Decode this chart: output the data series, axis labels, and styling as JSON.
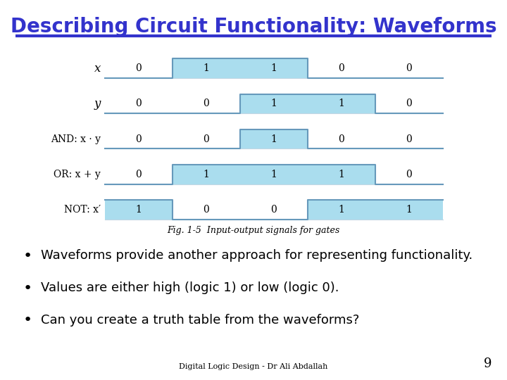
{
  "title": "Describing Circuit Functionality: Waveforms",
  "title_color": "#3333CC",
  "title_fontsize": 20,
  "background_color": "#FFFFFF",
  "header_line_color": "#3333CC",
  "bullet_points": [
    "Waveforms provide another approach for representing functionality.",
    "Values are either high (logic 1) or low (logic 0).",
    "Can you create a truth table from the waveforms?"
  ],
  "bullet_fontsize": 13,
  "bullet_color": "#000000",
  "footer_text": "Digital Logic Design - Dr Ali Abdallah",
  "footer_page": "9",
  "fig_caption": "Fig. 1-5  Input-output signals for gates",
  "waveform_fill_color": "#AADDEE",
  "waveform_line_color": "#6699BB",
  "signal_keys": [
    "x",
    "y",
    "and",
    "or",
    "not"
  ],
  "signal_labels": [
    "x",
    "y",
    "AND: x · y",
    "OR: x + y",
    "NOT: x′"
  ],
  "signal_values": {
    "x": [
      0,
      1,
      1,
      0,
      0
    ],
    "y": [
      0,
      0,
      1,
      1,
      0
    ],
    "and": [
      0,
      0,
      1,
      0,
      0
    ],
    "or": [
      0,
      1,
      1,
      1,
      0
    ],
    "not": [
      1,
      0,
      0,
      1,
      1
    ]
  },
  "signal_value_labels": {
    "x": [
      "0",
      "1",
      "1",
      "0",
      "0"
    ],
    "y": [
      "0",
      "0",
      "1",
      "1",
      "0"
    ],
    "and": [
      "0",
      "0",
      "1",
      "0",
      "0"
    ],
    "or": [
      "0",
      "1",
      "1",
      "1",
      "0"
    ],
    "not": [
      "1",
      "0",
      "0",
      "1",
      "1"
    ]
  }
}
